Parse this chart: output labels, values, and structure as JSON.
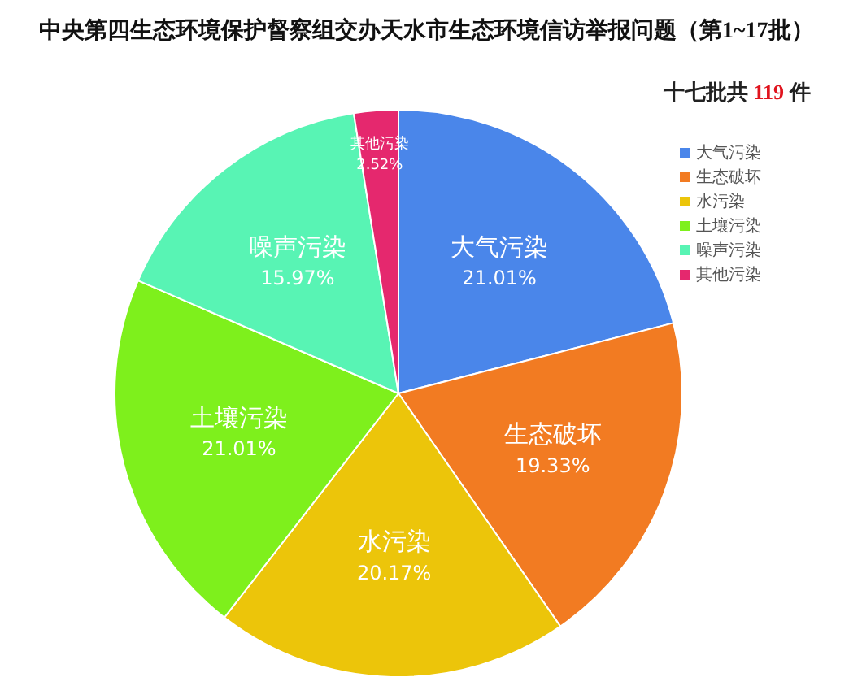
{
  "chart_data": {
    "type": "pie",
    "title": "中央第四生态环境保护督察组交办天水市生态环境信访举报问题（第1~17批）",
    "subtitle": "十七批共 119 件",
    "categories": [
      "大气污染",
      "生态破坏",
      "水污染",
      "土壤污染",
      "噪声污染",
      "其他污染"
    ],
    "values": [
      21.01,
      19.33,
      20.17,
      21.01,
      15.97,
      2.52
    ],
    "colors": [
      "#4a86ea",
      "#f27b22",
      "#ecc50a",
      "#7ef01c",
      "#58f4b4",
      "#e5286e"
    ],
    "value_labels": [
      "21.01%",
      "19.33%",
      "20.17%",
      "21.01%",
      "15.97%",
      "2.52%"
    ],
    "legend": "top right"
  }
}
